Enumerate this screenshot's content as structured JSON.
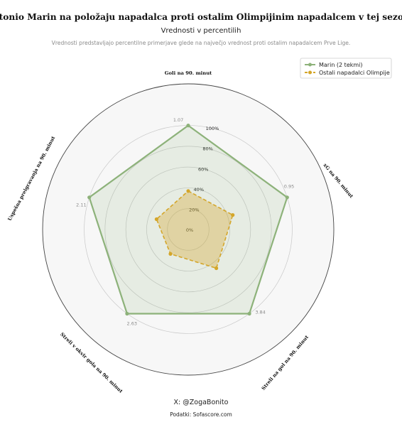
{
  "chart_data": {
    "type": "radar",
    "title": "Antonio Marin na položaju napadalca proti ostalim Olimpijinim napadalcem v tej sezoni.",
    "subtitle": "Vrednosti v percentilih",
    "note": "Vrednosti predstavljajo percentilne primerjave glede na največjo vrednost proti ostalim napadalcem Prve Lige.",
    "axes": [
      "Goli na 90. minut",
      "xG na 90. minut",
      "Streli na gol na 90. minut",
      "Streli v okvir gola na 90. minut",
      "Uspešna preigravanja na 90. minut"
    ],
    "axis_max_labels": [
      "1.07",
      "0.95",
      "3.84",
      "2.63",
      "2.11"
    ],
    "radial_ticks": [
      "0%",
      "20%",
      "40%",
      "60%",
      "80%",
      "100%"
    ],
    "ylim": [
      0,
      140
    ],
    "series": [
      {
        "name": "Marin (2 tekmi)",
        "color": "#8db27a",
        "values": [
          100,
          100,
          100,
          100,
          100
        ]
      },
      {
        "name": "Ostali napadalci Olimpije",
        "color": "#d4a62a",
        "values": [
          37,
          45,
          46,
          29,
          32
        ]
      }
    ],
    "grid": true,
    "legend": "top-right"
  },
  "credits": {
    "author": "X: @ZogaBonito",
    "source": "Podatki: Sofascore.com"
  },
  "colors": {
    "plot_background": "#f7f7f7",
    "grid": "#c8c8c8",
    "outer_ring": "#444444",
    "axis_max_label": "#8a8a8a",
    "note_text": "#8a8a8a"
  }
}
